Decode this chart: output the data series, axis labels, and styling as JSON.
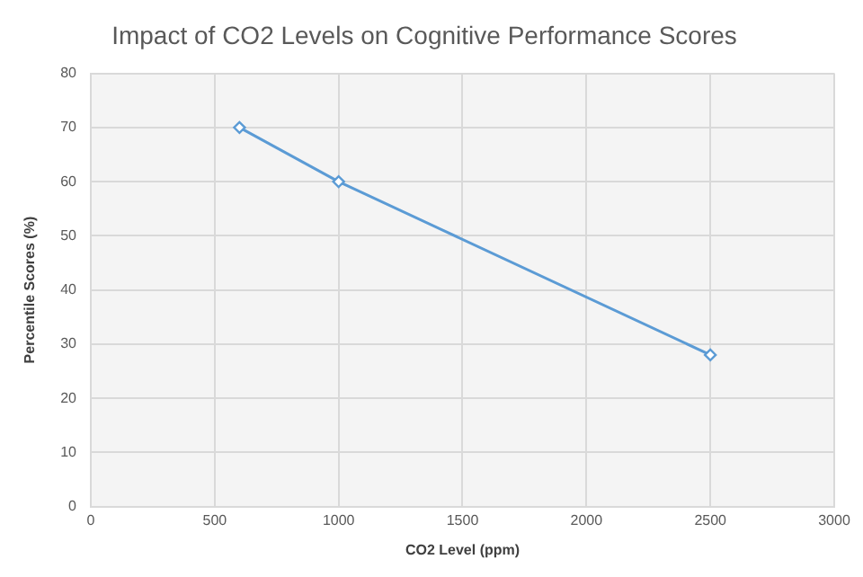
{
  "chart_data": {
    "type": "line",
    "title": "Impact of CO2 Levels on Cognitive Performance Scores",
    "xlabel": "CO2 Level (ppm)",
    "ylabel": "Percentile Scores (%)",
    "x": [
      600,
      1000,
      2500
    ],
    "series": [
      {
        "color": "#5b9bd5",
        "values": [
          70,
          60,
          28
        ]
      }
    ],
    "xlim": [
      0,
      3000
    ],
    "xticks": [
      0,
      500,
      1000,
      1500,
      2000,
      2500,
      3000
    ],
    "ylim": [
      0,
      80
    ],
    "yticks": [
      0,
      10,
      20,
      30,
      40,
      50,
      60,
      70,
      80
    ],
    "grid": true,
    "marker": "diamond",
    "line_style": "solid"
  }
}
